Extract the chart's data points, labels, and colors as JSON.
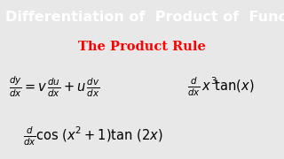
{
  "title": "Differentiation of  Product of  Functions",
  "subtitle": "The Product Rule",
  "title_bg_color": "#1a56ff",
  "title_text_color": "white",
  "subtitle_color": "red",
  "body_bg_color": "#e8e8e8",
  "formula_color": "black",
  "title_fontsize": 11.5,
  "subtitle_fontsize": 10.5,
  "formula_fontsize": 10.5
}
